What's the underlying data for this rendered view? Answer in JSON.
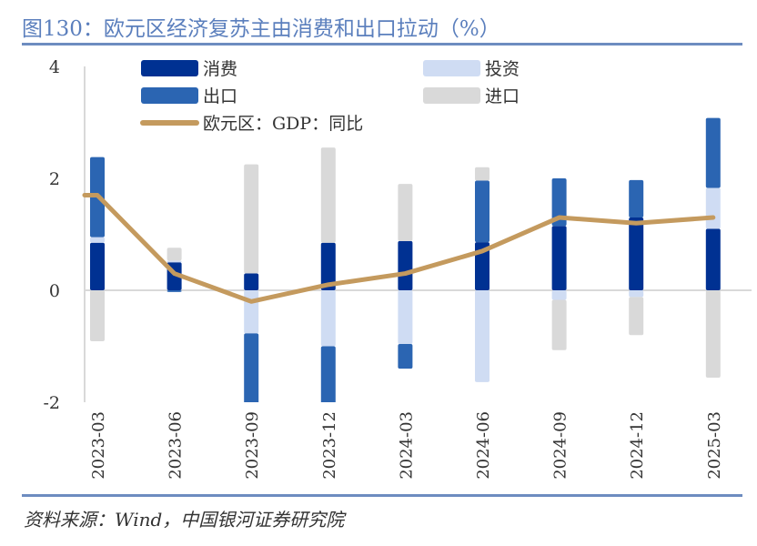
{
  "title": "图130：欧元区经济复苏主由消费和出口拉动（%）",
  "source": "资料来源：Wind，中国银河证券研究院",
  "chart_data": {
    "type": "bar",
    "stacked": true,
    "title": "图130：欧元区经济复苏主由消费和出口拉动（%）",
    "categories": [
      "2023-03",
      "2023-06",
      "2023-09",
      "2023-12",
      "2024-03",
      "2024-06",
      "2024-09",
      "2024-12",
      "2025-03"
    ],
    "ylim": [
      -2,
      4
    ],
    "yticks": [
      4,
      2,
      0,
      -2
    ],
    "grid": false,
    "legend_placement": "top",
    "series": [
      {
        "name": "消费",
        "type": "bar",
        "color": "#003192",
        "values": [
          0.85,
          0.5,
          0.3,
          0.85,
          0.88,
          0.86,
          1.15,
          1.3,
          1.1
        ]
      },
      {
        "name": "投资",
        "type": "bar",
        "color": "#cfdcf3",
        "values": [
          0.1,
          0.03,
          -0.77,
          -1.0,
          -0.96,
          -1.64,
          -0.17,
          -0.12,
          0.73
        ]
      },
      {
        "name": "出口",
        "type": "bar",
        "color": "#2b65b2",
        "values": [
          1.43,
          -0.03,
          -1.6,
          -1.3,
          -0.44,
          1.1,
          0.85,
          0.67,
          1.25
        ]
      },
      {
        "name": "进口",
        "type": "bar",
        "color": "#d9d9d9",
        "values": [
          -0.91,
          0.23,
          1.95,
          1.7,
          1.02,
          0.24,
          -0.9,
          -0.68,
          -1.56
        ]
      },
      {
        "name": "欧元区：GDP：同比",
        "type": "line",
        "color": "#c49a5e",
        "values": [
          1.7,
          0.3,
          -0.2,
          0.1,
          0.3,
          0.7,
          1.3,
          1.2,
          1.3
        ]
      }
    ]
  }
}
